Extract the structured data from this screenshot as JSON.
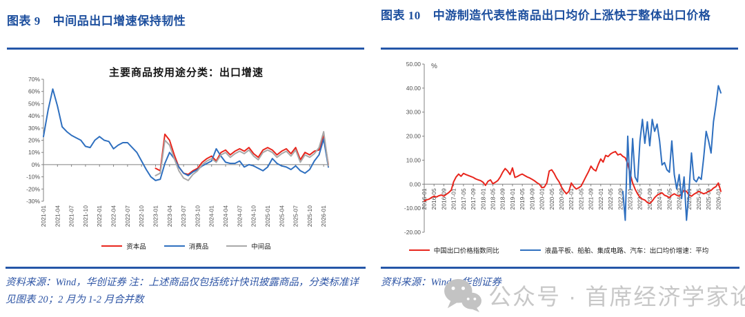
{
  "figure9": {
    "label": "图表 9",
    "title": "中间品出口增速保持韧性",
    "source_note": "资料来源：Wind，华创证券  注：上述商品仅包括统计快讯披露商品，分类标准详见图表 20；2 月为 1-2 月合并数"
  },
  "figure10": {
    "label": "图表 10",
    "title": "中游制造代表性商品出口均价上涨快于整体出口价格",
    "source_note": "资料来源：Wind，华创证券"
  },
  "watermark": {
    "text": "公众号 · 首席经济学家论坛"
  },
  "colors": {
    "heading_blue": "#1d4f9e",
    "divider_blue": "#2456a8",
    "note_blue": "#2e55a5",
    "series_red": "#e8251c",
    "series_blue": "#2e6fbf",
    "series_gray": "#a8a8a8",
    "axis_gray": "#808080",
    "watermark_gray": "#c8c8c8"
  },
  "chart_data": [
    {
      "id": "fig9",
      "type": "line",
      "title": "主要商品按用途分类：出口增速",
      "ylabel": "",
      "y_unit": "",
      "y_format": "percent",
      "ylim": [
        -30,
        70
      ],
      "ytick_step": 10,
      "grid": false,
      "legend_position": "bottom",
      "x_label_position": "bottom",
      "months_total": 62,
      "label_every_months": 3,
      "x_tick_labels": [
        "2021-01",
        "2021-04",
        "2021-07",
        "2021-10",
        "2022-01",
        "2022-04",
        "2022-07",
        "2022-10",
        "2023-01",
        "2023-04",
        "2023-07",
        "2023-10",
        "2024-01",
        "2024-04",
        "2024-07",
        "2024-10",
        "2025-01",
        "2025-04",
        "2025-07",
        "2025-10",
        "2026-01"
      ],
      "series": [
        {
          "name": "资本品",
          "color": "#e8251c",
          "start_month": 24,
          "values": [
            -3,
            -5,
            25,
            20,
            8,
            -2,
            -7,
            -8,
            -5,
            -3,
            2,
            5,
            7,
            3,
            10,
            12,
            8,
            11,
            13,
            11,
            14,
            9,
            6,
            12,
            14,
            12,
            8,
            11,
            13,
            9,
            14,
            4,
            10,
            8,
            11,
            12,
            24,
            0
          ]
        },
        {
          "name": "消费品",
          "color": "#2e6fbf",
          "start_month": 0,
          "values": [
            23,
            45,
            62,
            48,
            31,
            27,
            24,
            22,
            20,
            15,
            14,
            20,
            23,
            20,
            19,
            13,
            16,
            18,
            18,
            14,
            10,
            3,
            -4,
            -10,
            -13,
            -12,
            1,
            10,
            5,
            -2,
            -7,
            -9,
            -6,
            -4,
            -1,
            1,
            3,
            13,
            7,
            2,
            1,
            1,
            3,
            -2,
            0,
            -1,
            -3,
            -5,
            -2,
            5,
            1,
            -1,
            -2,
            -4,
            -1,
            -5,
            -7,
            -4,
            3,
            8,
            21,
            -2
          ]
        },
        {
          "name": "中间品",
          "color": "#a8a8a8",
          "start_month": 24,
          "values": [
            -9,
            -7,
            20,
            16,
            5,
            -5,
            -11,
            -13,
            -8,
            -5,
            0,
            3,
            5,
            2,
            8,
            10,
            6,
            9,
            11,
            9,
            12,
            7,
            4,
            10,
            12,
            10,
            6,
            9,
            11,
            7,
            12,
            2,
            8,
            6,
            9,
            14,
            27,
            -1
          ]
        }
      ]
    },
    {
      "id": "fig10",
      "type": "line",
      "title": "",
      "ylabel": "",
      "y_unit": "%",
      "y_format": "fixed2",
      "ylim": [
        -20,
        50
      ],
      "ytick_step": 10,
      "grid": false,
      "legend_position": "bottom",
      "x_label_position": "zero",
      "months_total": 122,
      "label_every_months": 4,
      "x_tick_labels": [
        "2016-01",
        "2016-05",
        "2016-09",
        "2017-01",
        "2017-05",
        "2017-09",
        "2018-01",
        "2018-05",
        "2018-09",
        "2019-01",
        "2019-05",
        "2019-09",
        "2020-01",
        "2020-05",
        "2020-09",
        "2021-01",
        "2021-05",
        "2021-09",
        "2022-01",
        "2022-05",
        "2022-09",
        "2023-01",
        "2023-05",
        "2023-09",
        "2024-01",
        "2024-05",
        "2024-09",
        "2025-01",
        "2025-05",
        "2025-09",
        "2026-01"
      ],
      "series": [
        {
          "name": "中国出口价格指数同比",
          "color": "#e8251c",
          "start_month": 0,
          "values": [
            -7,
            -6.5,
            -6.2,
            -5.5,
            -5,
            -5.3,
            -4.8,
            -4.5,
            -5,
            -4.2,
            -3.5,
            -2.5,
            1,
            3,
            4.2,
            3.3,
            4.5,
            4,
            3.6,
            3.2,
            2.8,
            2.2,
            1.8,
            1.5,
            0.8,
            -0.5,
            1.2,
            1.8,
            0.2,
            0.8,
            1.5,
            3,
            5,
            6.5,
            5.5,
            4,
            6.8,
            2.8,
            3.2,
            3.8,
            4.2,
            3.6,
            3,
            2.6,
            2,
            1.4,
            0.6,
            0,
            -1.5,
            -1.2,
            0.5,
            5.5,
            6,
            4.5,
            2.5,
            1,
            -1.2,
            -2.8,
            -4,
            -3,
            0.5,
            -1,
            -2,
            -1.5,
            -0.8,
            1.2,
            3.2,
            5.2,
            7.5,
            6.2,
            5.5,
            8.2,
            10.5,
            9.2,
            12,
            11.5,
            12.6,
            13.2,
            13.6,
            12.2,
            12.6,
            11.6,
            11,
            8.5,
            4.5,
            0.5,
            -2,
            -4,
            -5.5,
            -6.2,
            -6.6,
            -7.6,
            -8,
            -7,
            -5.6,
            -4.6,
            -4,
            -3.6,
            -4.6,
            -5,
            -5.6,
            -4.6,
            -4,
            -4.6,
            -5,
            -4,
            -2.6,
            -3,
            -4.5,
            -5,
            -4.2,
            -3.6,
            -3,
            -3.5,
            -4,
            -3.6,
            -3,
            -2.6,
            -1.6,
            -1,
            0.5,
            -3
          ]
        },
        {
          "name": "液晶平板、船舶、集成电路、汽车：出口均价增速：平均",
          "color": "#2e6fbf",
          "start_month": 81,
          "values": [
            -3,
            -15,
            20,
            -2,
            19,
            3,
            1,
            18,
            27,
            17,
            26,
            16,
            27,
            22,
            25,
            18,
            8,
            9,
            6,
            5,
            18,
            4,
            -2,
            4,
            -6,
            3,
            -15,
            -3,
            13,
            2,
            1,
            3,
            2,
            11,
            22,
            18,
            13,
            26,
            33,
            41,
            38
          ]
        }
      ]
    }
  ]
}
